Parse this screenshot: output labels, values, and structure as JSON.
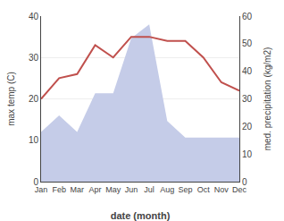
{
  "chart_data": {
    "type": "line",
    "xlabel": "date (month)",
    "ylabel": "max temp (C)",
    "y2label": "med. precipitation (kg/m2)",
    "categories": [
      "Jan",
      "Feb",
      "Mar",
      "Apr",
      "May",
      "Jun",
      "Jul",
      "Aug",
      "Sep",
      "Oct",
      "Nov",
      "Dec"
    ],
    "series": [
      {
        "type": "area",
        "axis": "y2",
        "color": "#c5cce8",
        "values": [
          18,
          24,
          18,
          32,
          32,
          52,
          57,
          22,
          16,
          16,
          16,
          16
        ]
      },
      {
        "type": "line",
        "color": "#c0504d",
        "values": [
          20,
          25,
          26,
          33,
          30,
          35,
          35,
          34,
          34,
          30,
          24,
          22
        ]
      }
    ],
    "ylim": [
      0,
      40
    ],
    "yticks": [
      0,
      10,
      20,
      30,
      40
    ],
    "y2lim": [
      0,
      60
    ],
    "y2ticks": [
      0,
      10,
      20,
      30,
      40,
      50,
      60
    ],
    "grid": true
  }
}
